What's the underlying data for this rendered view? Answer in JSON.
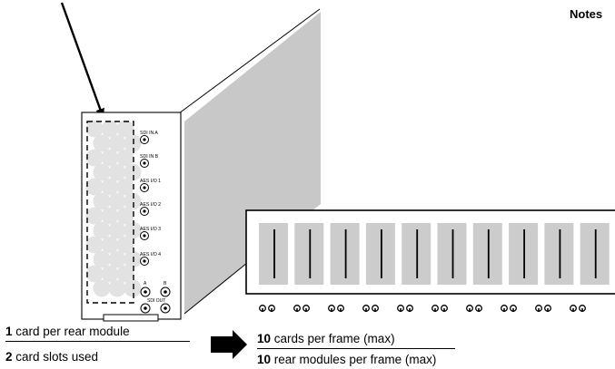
{
  "header": {
    "notes_label": "Notes"
  },
  "rear_module": {
    "connector_labels": [
      "SDI IN A",
      "SDI IN B",
      "AES I/O 1",
      "AES I/O 2",
      "AES I/O 3",
      "AES I/O 4"
    ],
    "output_labels": {
      "a": "A",
      "b": "B",
      "sdi_out": "SDI OUT"
    }
  },
  "left_caption": {
    "line1": {
      "number": "1",
      "text": " card per rear module"
    },
    "line2": {
      "number": "2",
      "text": " card slots used"
    }
  },
  "right_caption": {
    "line1": {
      "number": "10",
      "text": " cards per frame (max)"
    },
    "line2": {
      "number": "10",
      "text": " rear modules per frame (max)"
    }
  },
  "frame": {
    "slot_count": 10
  },
  "colors": {
    "panel_gray": "#c8c8c8",
    "card_gray": "#cccccc",
    "circle_gray": "#e2e2e2",
    "line": "#000000"
  }
}
